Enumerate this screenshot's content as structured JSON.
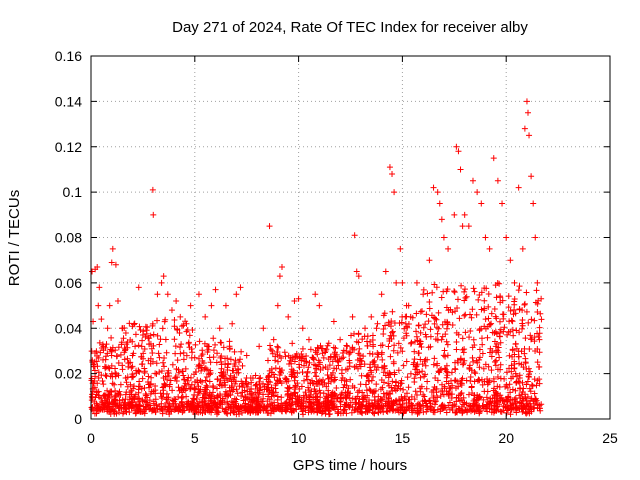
{
  "chart_data": {
    "type": "scatter",
    "title": "Day 271 of 2024, Rate Of TEC Index for receiver alby",
    "xlabel": "GPS time / hours",
    "ylabel": "ROTI / TECUs",
    "xlim": [
      0,
      25
    ],
    "ylim": [
      0,
      0.16
    ],
    "x_ticks": [
      0,
      5,
      10,
      15,
      20,
      25
    ],
    "y_ticks": [
      0,
      0.02,
      0.04,
      0.06,
      0.08,
      0.1,
      0.12,
      0.14,
      0.16
    ],
    "x_tick_labels": [
      "0",
      "5",
      "10",
      "15",
      "20",
      "25"
    ],
    "y_tick_labels": [
      "0",
      "0.02",
      "0.04",
      "0.06",
      "0.08",
      "0.1",
      "0.12",
      "0.14",
      "0.16"
    ],
    "grid": true,
    "marker": "+",
    "color": "#ff0000",
    "series": [
      {
        "points": [
          [
            0.05,
            0.065
          ],
          [
            0.1,
            0.043
          ],
          [
            0.2,
            0.066
          ],
          [
            0.3,
            0.067
          ],
          [
            0.35,
            0.05
          ],
          [
            0.4,
            0.058
          ],
          [
            0.5,
            0.044
          ],
          [
            0.6,
            0.032
          ],
          [
            0.8,
            0.04
          ],
          [
            0.9,
            0.05
          ],
          [
            1.0,
            0.069
          ],
          [
            1.05,
            0.075
          ],
          [
            1.2,
            0.068
          ],
          [
            1.3,
            0.052
          ],
          [
            1.5,
            0.04
          ],
          [
            1.7,
            0.033
          ],
          [
            2.0,
            0.028
          ],
          [
            2.3,
            0.058
          ],
          [
            2.5,
            0.037
          ],
          [
            2.8,
            0.033
          ],
          [
            2.98,
            0.101
          ],
          [
            3.0,
            0.09
          ],
          [
            3.2,
            0.055
          ],
          [
            3.4,
            0.06
          ],
          [
            3.5,
            0.063
          ],
          [
            3.7,
            0.055
          ],
          [
            3.9,
            0.048
          ],
          [
            4.1,
            0.052
          ],
          [
            4.3,
            0.045
          ],
          [
            4.6,
            0.042
          ],
          [
            4.8,
            0.05
          ],
          [
            5.2,
            0.055
          ],
          [
            5.5,
            0.045
          ],
          [
            5.8,
            0.05
          ],
          [
            6.0,
            0.057
          ],
          [
            6.2,
            0.04
          ],
          [
            6.5,
            0.05
          ],
          [
            6.8,
            0.042
          ],
          [
            7.0,
            0.055
          ],
          [
            7.2,
            0.058
          ],
          [
            7.5,
            0.028
          ],
          [
            7.8,
            0.018
          ],
          [
            8.1,
            0.032
          ],
          [
            8.3,
            0.04
          ],
          [
            8.6,
            0.085
          ],
          [
            8.8,
            0.035
          ],
          [
            9.0,
            0.05
          ],
          [
            9.1,
            0.063
          ],
          [
            9.2,
            0.067
          ],
          [
            9.5,
            0.045
          ],
          [
            9.8,
            0.052
          ],
          [
            10.0,
            0.053
          ],
          [
            10.2,
            0.04
          ],
          [
            10.5,
            0.035
          ],
          [
            10.8,
            0.055
          ],
          [
            11.0,
            0.05
          ],
          [
            11.3,
            0.03
          ],
          [
            11.7,
            0.043
          ],
          [
            12.0,
            0.035
          ],
          [
            12.3,
            0.03
          ],
          [
            12.6,
            0.045
          ],
          [
            12.7,
            0.081
          ],
          [
            12.8,
            0.065
          ],
          [
            12.9,
            0.063
          ],
          [
            13.2,
            0.04
          ],
          [
            13.5,
            0.045
          ],
          [
            13.8,
            0.042
          ],
          [
            14.0,
            0.055
          ],
          [
            14.2,
            0.065
          ],
          [
            14.4,
            0.111
          ],
          [
            14.5,
            0.108
          ],
          [
            14.6,
            0.1
          ],
          [
            14.7,
            0.06
          ],
          [
            14.9,
            0.075
          ],
          [
            15.0,
            0.06
          ],
          [
            15.2,
            0.05
          ],
          [
            15.4,
            0.045
          ],
          [
            15.7,
            0.06
          ],
          [
            16.0,
            0.055
          ],
          [
            16.3,
            0.07
          ],
          [
            16.5,
            0.102
          ],
          [
            16.7,
            0.1
          ],
          [
            16.8,
            0.095
          ],
          [
            16.9,
            0.088
          ],
          [
            17.0,
            0.08
          ],
          [
            17.2,
            0.075
          ],
          [
            17.5,
            0.09
          ],
          [
            17.6,
            0.12
          ],
          [
            17.7,
            0.118
          ],
          [
            17.8,
            0.11
          ],
          [
            17.9,
            0.085
          ],
          [
            18.0,
            0.09
          ],
          [
            18.2,
            0.085
          ],
          [
            18.4,
            0.105
          ],
          [
            18.6,
            0.1
          ],
          [
            18.8,
            0.095
          ],
          [
            19.0,
            0.08
          ],
          [
            19.2,
            0.075
          ],
          [
            19.4,
            0.115
          ],
          [
            19.6,
            0.105
          ],
          [
            19.8,
            0.095
          ],
          [
            20.0,
            0.08
          ],
          [
            20.2,
            0.07
          ],
          [
            20.4,
            0.06
          ],
          [
            20.6,
            0.102
          ],
          [
            20.8,
            0.075
          ],
          [
            20.9,
            0.128
          ],
          [
            21.0,
            0.14
          ],
          [
            21.05,
            0.135
          ],
          [
            21.1,
            0.125
          ],
          [
            21.2,
            0.107
          ],
          [
            21.3,
            0.095
          ],
          [
            21.4,
            0.08
          ],
          [
            21.5,
            0.06
          ],
          [
            21.6,
            0.035
          ]
        ]
      }
    ]
  }
}
